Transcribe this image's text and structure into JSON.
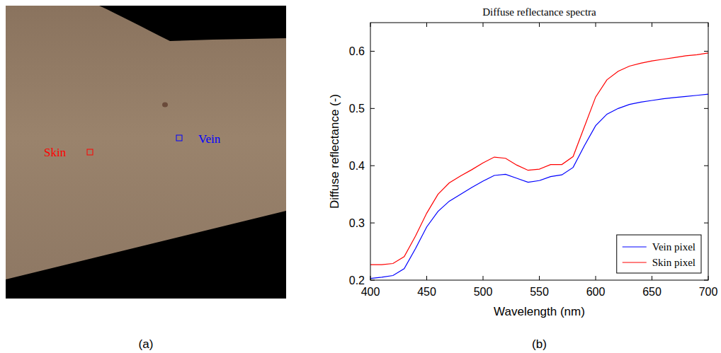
{
  "panel_labels": [
    "(a)",
    "(b)"
  ],
  "image": {
    "annotations": [
      {
        "text": "Skin",
        "color": "#ff0000"
      },
      {
        "text": "Vein",
        "color": "#0000ff"
      }
    ]
  },
  "chart_data": {
    "type": "line",
    "title": "Diffuse reflectance spectra",
    "x_label": "Wavelength (nm)",
    "y_label": "Diffuse reflectance (-)",
    "x": [
      400,
      410,
      420,
      430,
      440,
      450,
      460,
      470,
      480,
      490,
      500,
      510,
      520,
      530,
      540,
      550,
      560,
      570,
      580,
      590,
      600,
      610,
      620,
      630,
      640,
      650,
      660,
      670,
      680,
      690,
      700
    ],
    "series": [
      {
        "name": "Vein pixel",
        "color": "#0000ff",
        "values": [
          0.203,
          0.205,
          0.208,
          0.22,
          0.255,
          0.293,
          0.32,
          0.338,
          0.35,
          0.362,
          0.373,
          0.383,
          0.385,
          0.378,
          0.371,
          0.374,
          0.381,
          0.384,
          0.397,
          0.435,
          0.47,
          0.49,
          0.5,
          0.507,
          0.511,
          0.514,
          0.517,
          0.519,
          0.521,
          0.523,
          0.525
        ]
      },
      {
        "name": "Skin pixel",
        "color": "#ff0000",
        "values": [
          0.227,
          0.227,
          0.229,
          0.241,
          0.277,
          0.317,
          0.35,
          0.37,
          0.382,
          0.393,
          0.405,
          0.415,
          0.413,
          0.401,
          0.392,
          0.394,
          0.402,
          0.402,
          0.416,
          0.468,
          0.52,
          0.55,
          0.565,
          0.574,
          0.579,
          0.583,
          0.586,
          0.589,
          0.592,
          0.594,
          0.597
        ]
      }
    ],
    "xlim": [
      400,
      700
    ],
    "xticks": [
      400,
      450,
      500,
      550,
      600,
      650,
      700
    ],
    "ylim": [
      0.2,
      0.65
    ],
    "yticks": [
      0.2,
      0.3,
      0.4,
      0.5,
      0.6
    ],
    "grid": false,
    "legend": "lower right"
  }
}
